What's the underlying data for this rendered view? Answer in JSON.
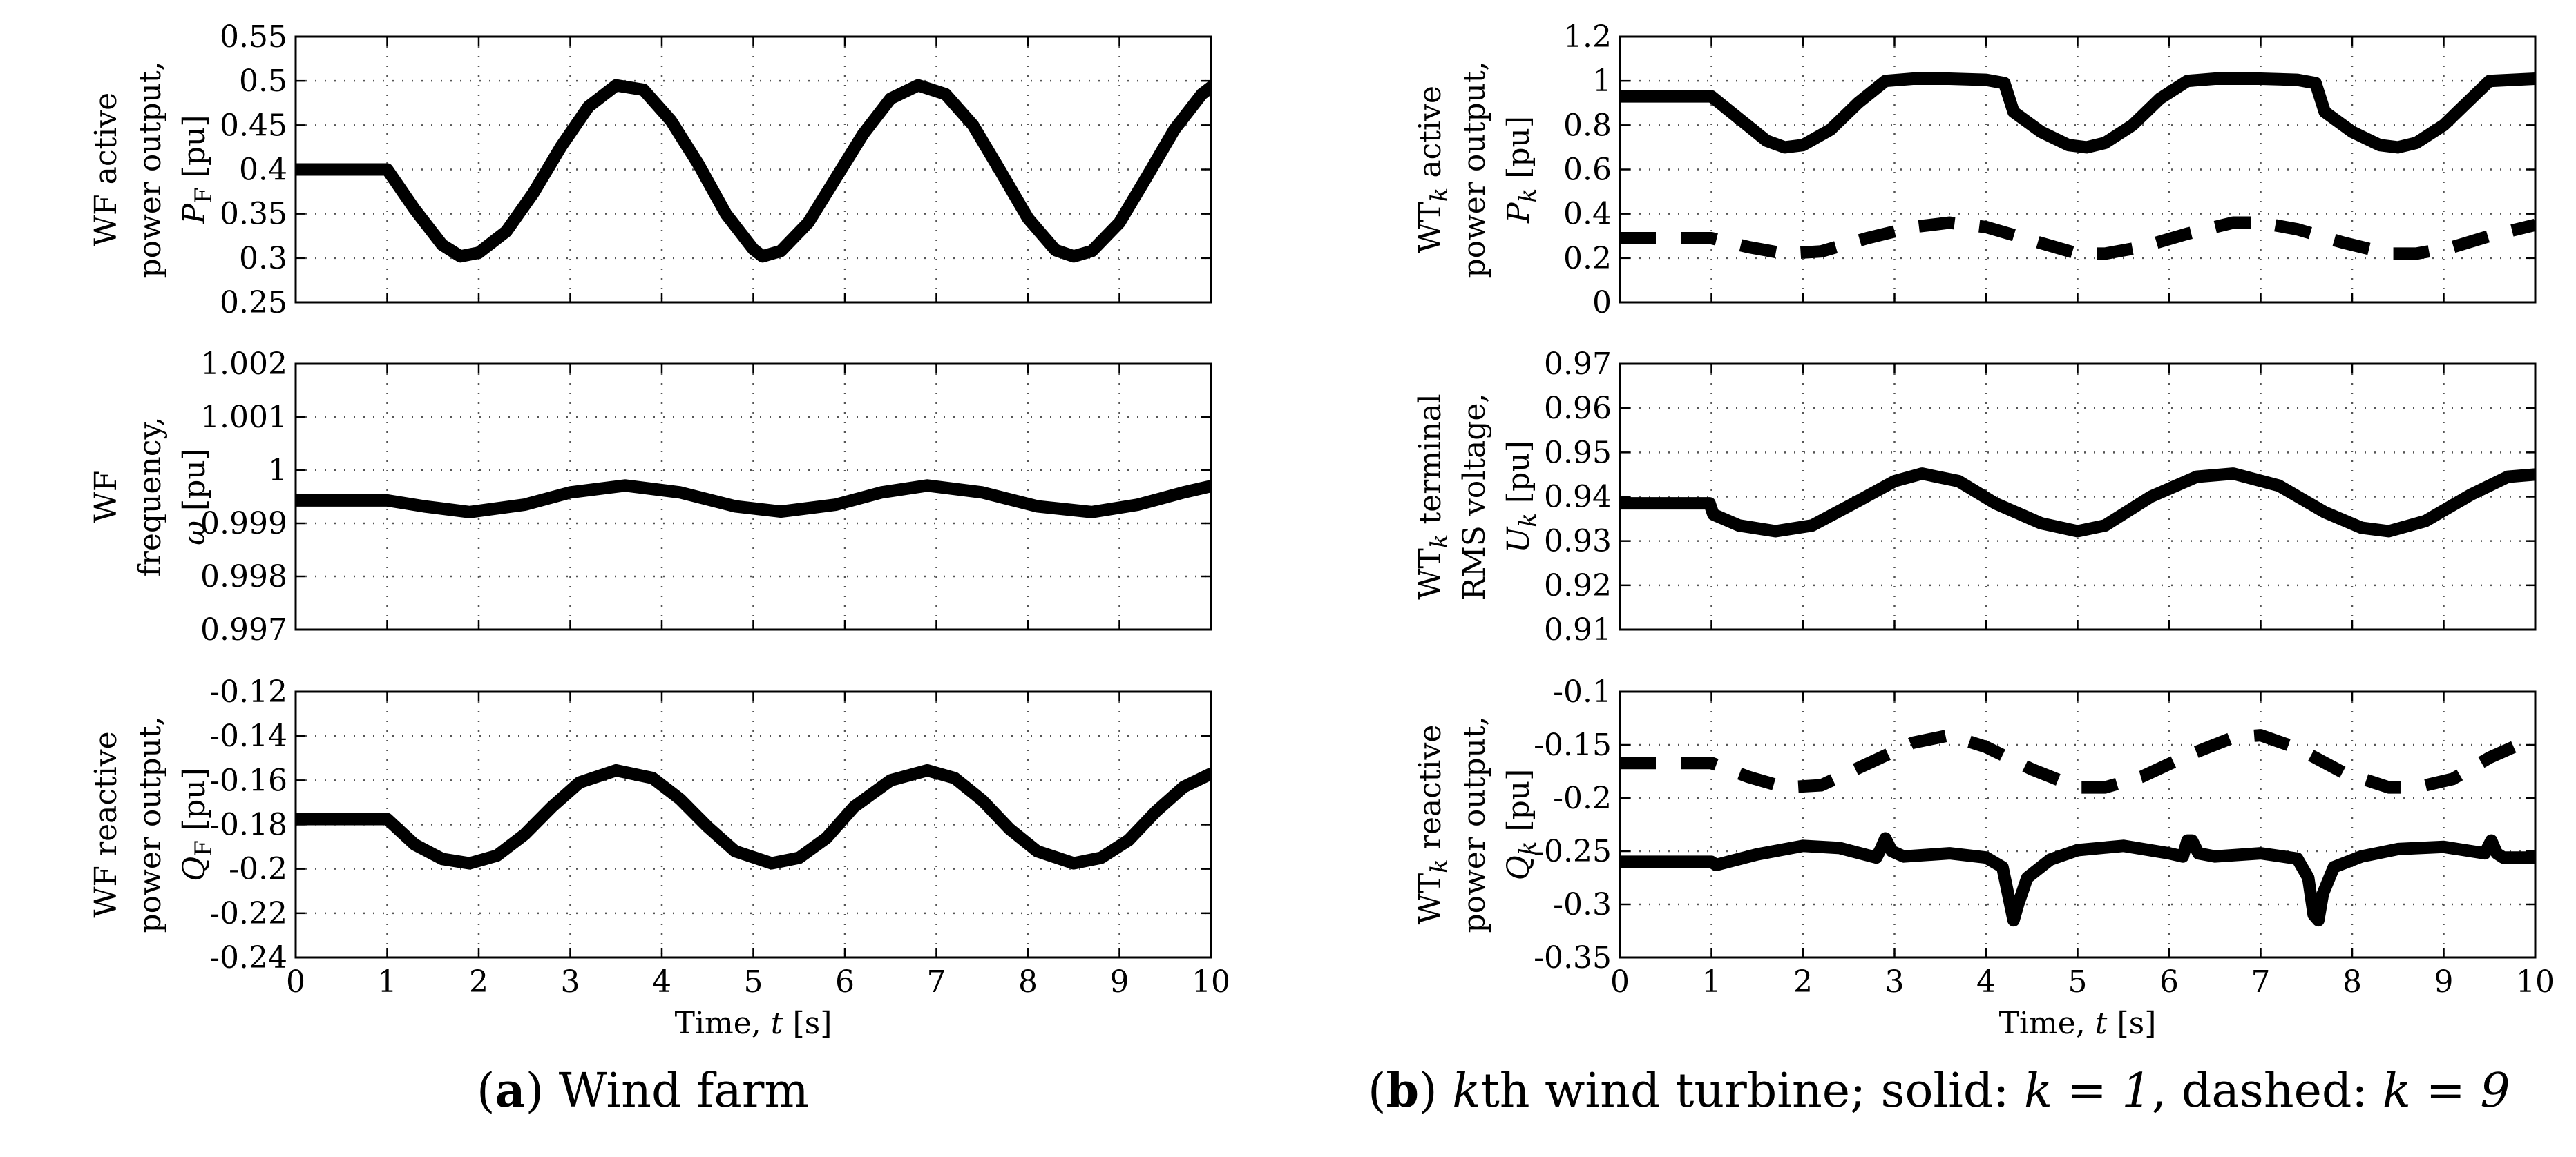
{
  "captions": {
    "a": {
      "letter": "a",
      "text": " Wind farm"
    },
    "b": {
      "letter": "b",
      "k": "k",
      "text1": "th wind turbine; solid: ",
      "eq1": "k = 1",
      "text2": ", dashed: ",
      "eq2": "k = 9"
    }
  },
  "chart_data": [
    {
      "id": "a1",
      "type": "line",
      "ylabel_lines": [
        "WF active",
        "power output,",
        "P_F [pu]"
      ],
      "xlim": [
        0,
        10
      ],
      "ylim": [
        0.25,
        0.55
      ],
      "yticks": [
        "0.25",
        "0.3",
        "0.35",
        "0.4",
        "0.45",
        "0.5",
        "0.55"
      ],
      "xticks": [
        "0",
        "1",
        "2",
        "3",
        "4",
        "5",
        "6",
        "7",
        "8",
        "9",
        "10"
      ],
      "show_xticks": false,
      "xlabel": "",
      "series": [
        {
          "name": "solid",
          "style": "solid",
          "x": [
            0,
            1,
            1.3,
            1.6,
            1.8,
            2.0,
            2.3,
            2.6,
            2.9,
            3.2,
            3.5,
            3.8,
            4.1,
            4.4,
            4.7,
            5.0,
            5.1,
            5.3,
            5.6,
            5.9,
            6.2,
            6.5,
            6.8,
            7.1,
            7.4,
            7.7,
            8.0,
            8.3,
            8.5,
            8.7,
            9.0,
            9.3,
            9.6,
            9.9,
            10
          ],
          "y": [
            0.4,
            0.4,
            0.355,
            0.315,
            0.302,
            0.306,
            0.33,
            0.374,
            0.426,
            0.471,
            0.495,
            0.49,
            0.455,
            0.406,
            0.35,
            0.31,
            0.302,
            0.308,
            0.34,
            0.39,
            0.44,
            0.48,
            0.495,
            0.485,
            0.45,
            0.398,
            0.345,
            0.309,
            0.302,
            0.308,
            0.34,
            0.392,
            0.445,
            0.485,
            0.493
          ]
        }
      ]
    },
    {
      "id": "a2",
      "type": "line",
      "ylabel_lines": [
        "WF",
        "frequency,",
        "ω [pu]"
      ],
      "xlim": [
        0,
        10
      ],
      "ylim": [
        0.997,
        1.002
      ],
      "yticks": [
        "0.997",
        "0.998",
        "0.999",
        "1",
        "1.001",
        "1.002"
      ],
      "xticks": [
        "0",
        "1",
        "2",
        "3",
        "4",
        "5",
        "6",
        "7",
        "8",
        "9",
        "10"
      ],
      "show_xticks": false,
      "xlabel": "",
      "series": [
        {
          "name": "solid",
          "style": "solid",
          "x": [
            0,
            1,
            1.4,
            1.9,
            2.5,
            3.0,
            3.6,
            4.2,
            4.8,
            5.3,
            5.9,
            6.4,
            6.9,
            7.5,
            8.1,
            8.7,
            9.2,
            9.7,
            10
          ],
          "y": [
            0.99943,
            0.99943,
            0.99932,
            0.99921,
            0.99935,
            0.99958,
            0.99971,
            0.99958,
            0.99932,
            0.99922,
            0.99935,
            0.99958,
            0.99971,
            0.99958,
            0.99932,
            0.99921,
            0.99935,
            0.99958,
            0.9997
          ]
        }
      ]
    },
    {
      "id": "a3",
      "type": "line",
      "ylabel_lines": [
        "WF reactive",
        "power output,",
        "Q_F [pu]"
      ],
      "xlim": [
        0,
        10
      ],
      "ylim": [
        -0.24,
        -0.12
      ],
      "yticks": [
        "-0.24",
        "-0.22",
        "-0.2",
        "-0.18",
        "-0.16",
        "-0.14",
        "-0.12"
      ],
      "xticks": [
        "0",
        "1",
        "2",
        "3",
        "4",
        "5",
        "6",
        "7",
        "8",
        "9",
        "10"
      ],
      "show_xticks": true,
      "xlabel": "Time, t [s]",
      "series": [
        {
          "name": "solid",
          "style": "solid",
          "x": [
            0,
            1,
            1.3,
            1.6,
            1.9,
            2.2,
            2.5,
            2.8,
            3.1,
            3.5,
            3.9,
            4.2,
            4.5,
            4.8,
            5.2,
            5.5,
            5.8,
            6.1,
            6.5,
            6.9,
            7.2,
            7.5,
            7.8,
            8.1,
            8.5,
            8.8,
            9.1,
            9.4,
            9.7,
            10
          ],
          "y": [
            -0.1775,
            -0.1775,
            -0.189,
            -0.1955,
            -0.1975,
            -0.194,
            -0.1845,
            -0.172,
            -0.161,
            -0.1555,
            -0.159,
            -0.1685,
            -0.181,
            -0.192,
            -0.1975,
            -0.195,
            -0.186,
            -0.172,
            -0.16,
            -0.1555,
            -0.159,
            -0.169,
            -0.182,
            -0.192,
            -0.1975,
            -0.195,
            -0.187,
            -0.174,
            -0.163,
            -0.157
          ]
        }
      ]
    },
    {
      "id": "b1",
      "type": "line",
      "ylabel_lines": [
        "WT_k active",
        "power output,",
        "P_k [pu]"
      ],
      "xlim": [
        0,
        10
      ],
      "ylim": [
        0,
        1.2
      ],
      "yticks": [
        "0",
        "0.2",
        "0.4",
        "0.6",
        "0.8",
        "1",
        "1.2"
      ],
      "xticks": [
        "0",
        "1",
        "2",
        "3",
        "4",
        "5",
        "6",
        "7",
        "8",
        "9",
        "10"
      ],
      "show_xticks": false,
      "xlabel": "",
      "series": [
        {
          "name": "k=1 (solid)",
          "style": "solid",
          "x": [
            0,
            1,
            1.3,
            1.6,
            1.8,
            2.0,
            2.3,
            2.6,
            2.9,
            3.2,
            3.6,
            4.0,
            4.2,
            4.3,
            4.6,
            4.9,
            5.1,
            5.3,
            5.6,
            5.9,
            6.2,
            6.5,
            7.0,
            7.4,
            7.6,
            7.7,
            8.0,
            8.3,
            8.5,
            8.7,
            9.0,
            9.3,
            9.5,
            10
          ],
          "y": [
            0.93,
            0.93,
            0.83,
            0.73,
            0.7,
            0.71,
            0.78,
            0.9,
            1.0,
            1.01,
            1.01,
            1.005,
            0.99,
            0.86,
            0.77,
            0.71,
            0.7,
            0.72,
            0.8,
            0.92,
            1.0,
            1.01,
            1.01,
            1.005,
            0.99,
            0.86,
            0.77,
            0.71,
            0.7,
            0.72,
            0.8,
            0.92,
            1.0,
            1.01
          ]
        },
        {
          "name": "k=9 (dashed)",
          "style": "dashed",
          "x": [
            0,
            1,
            1.4,
            1.8,
            2.2,
            2.7,
            3.2,
            3.6,
            4.0,
            4.5,
            5.0,
            5.3,
            5.7,
            6.2,
            6.7,
            7.0,
            7.4,
            7.9,
            8.4,
            8.7,
            9.1,
            9.5,
            10
          ],
          "y": [
            0.29,
            0.29,
            0.25,
            0.22,
            0.23,
            0.29,
            0.34,
            0.36,
            0.34,
            0.28,
            0.22,
            0.22,
            0.25,
            0.31,
            0.36,
            0.36,
            0.33,
            0.27,
            0.22,
            0.22,
            0.25,
            0.3,
            0.35
          ]
        }
      ]
    },
    {
      "id": "b2",
      "type": "line",
      "ylabel_lines": [
        "WT_k terminal",
        "RMS voltage,",
        "U_k [pu]"
      ],
      "xlim": [
        0,
        10
      ],
      "ylim": [
        0.91,
        0.97
      ],
      "yticks": [
        "0.91",
        "0.92",
        "0.93",
        "0.94",
        "0.95",
        "0.96",
        "0.97"
      ],
      "xticks": [
        "0",
        "1",
        "2",
        "3",
        "4",
        "5",
        "6",
        "7",
        "8",
        "9",
        "10"
      ],
      "show_xticks": false,
      "xlabel": "",
      "series": [
        {
          "name": "solid",
          "style": "solid",
          "x": [
            0,
            0.98,
            1.02,
            1.3,
            1.7,
            2.1,
            2.6,
            3.0,
            3.3,
            3.7,
            4.1,
            4.6,
            5.0,
            5.3,
            5.8,
            6.3,
            6.7,
            7.2,
            7.7,
            8.1,
            8.4,
            8.8,
            9.3,
            9.7,
            10
          ],
          "y": [
            0.9385,
            0.9385,
            0.936,
            0.9335,
            0.9322,
            0.9335,
            0.939,
            0.9435,
            0.9452,
            0.9435,
            0.9385,
            0.934,
            0.9322,
            0.9335,
            0.94,
            0.9445,
            0.9452,
            0.9425,
            0.9365,
            0.933,
            0.9322,
            0.9345,
            0.9405,
            0.9445,
            0.945
          ]
        }
      ]
    },
    {
      "id": "b3",
      "type": "line",
      "ylabel_lines": [
        "WT_k reactive",
        "power output,",
        "Q_k [pu]"
      ],
      "xlim": [
        0,
        10
      ],
      "ylim": [
        -0.35,
        -0.1
      ],
      "yticks": [
        "-0.35",
        "-0.3",
        "-0.25",
        "-0.2",
        "-0.15",
        "-0.1"
      ],
      "xticks": [
        "0",
        "1",
        "2",
        "3",
        "4",
        "5",
        "6",
        "7",
        "8",
        "9",
        "10"
      ],
      "show_xticks": true,
      "xlabel": "Time, t [s]",
      "series": [
        {
          "name": "k=9 (dashed)",
          "style": "dashed",
          "x": [
            0,
            1,
            1.4,
            1.8,
            2.2,
            2.7,
            3.2,
            3.6,
            4.0,
            4.5,
            5.0,
            5.3,
            5.7,
            6.2,
            6.7,
            7.0,
            7.4,
            7.9,
            8.4,
            8.7,
            9.1,
            9.5,
            10
          ],
          "y": [
            -0.167,
            -0.167,
            -0.18,
            -0.19,
            -0.188,
            -0.168,
            -0.148,
            -0.141,
            -0.152,
            -0.173,
            -0.19,
            -0.19,
            -0.18,
            -0.16,
            -0.143,
            -0.141,
            -0.153,
            -0.176,
            -0.19,
            -0.19,
            -0.182,
            -0.162,
            -0.143
          ]
        },
        {
          "name": "k=1 (solid)",
          "style": "solid",
          "x": [
            0,
            1,
            1.05,
            1.5,
            2.0,
            2.4,
            2.8,
            2.85,
            2.9,
            2.97,
            3.1,
            3.6,
            4.0,
            4.18,
            4.24,
            4.3,
            4.35,
            4.45,
            4.7,
            5.0,
            5.5,
            6.0,
            6.15,
            6.2,
            6.25,
            6.32,
            6.5,
            7.0,
            7.4,
            7.52,
            7.58,
            7.63,
            7.68,
            7.8,
            8.1,
            8.5,
            9.0,
            9.45,
            9.52,
            9.58,
            9.65,
            10
          ],
          "y": [
            -0.26,
            -0.26,
            -0.263,
            -0.253,
            -0.245,
            -0.247,
            -0.256,
            -0.248,
            -0.238,
            -0.25,
            -0.255,
            -0.252,
            -0.256,
            -0.265,
            -0.29,
            -0.315,
            -0.3,
            -0.275,
            -0.258,
            -0.249,
            -0.245,
            -0.252,
            -0.255,
            -0.24,
            -0.24,
            -0.252,
            -0.255,
            -0.252,
            -0.257,
            -0.275,
            -0.31,
            -0.315,
            -0.29,
            -0.265,
            -0.255,
            -0.248,
            -0.246,
            -0.252,
            -0.24,
            -0.252,
            -0.256,
            -0.256
          ]
        }
      ]
    }
  ]
}
